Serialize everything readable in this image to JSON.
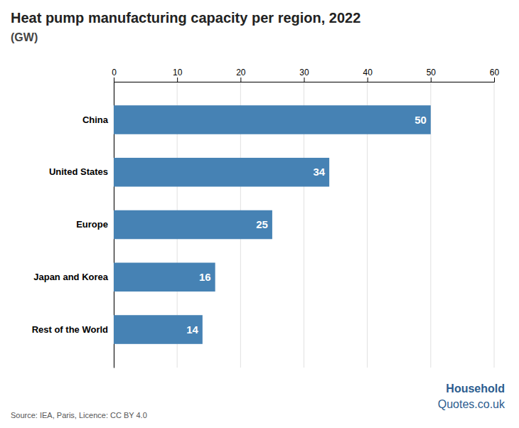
{
  "chart_data": {
    "type": "bar",
    "orientation": "horizontal",
    "title": "Heat pump manufacturing capacity per region, 2022",
    "subtitle": "(GW)",
    "categories": [
      "China",
      "United States",
      "Europe",
      "Japan and Korea",
      "Rest of the World"
    ],
    "values": [
      50,
      34,
      25,
      16,
      14
    ],
    "xlim": [
      0,
      60
    ],
    "xticks": [
      0,
      10,
      20,
      30,
      40,
      50,
      60
    ],
    "grid": true,
    "data_labels": true,
    "annotations": [
      "Source: IEA, Paris, Licence: CC BY 4.0",
      "Household",
      "Quotes.co.uk"
    ]
  }
}
